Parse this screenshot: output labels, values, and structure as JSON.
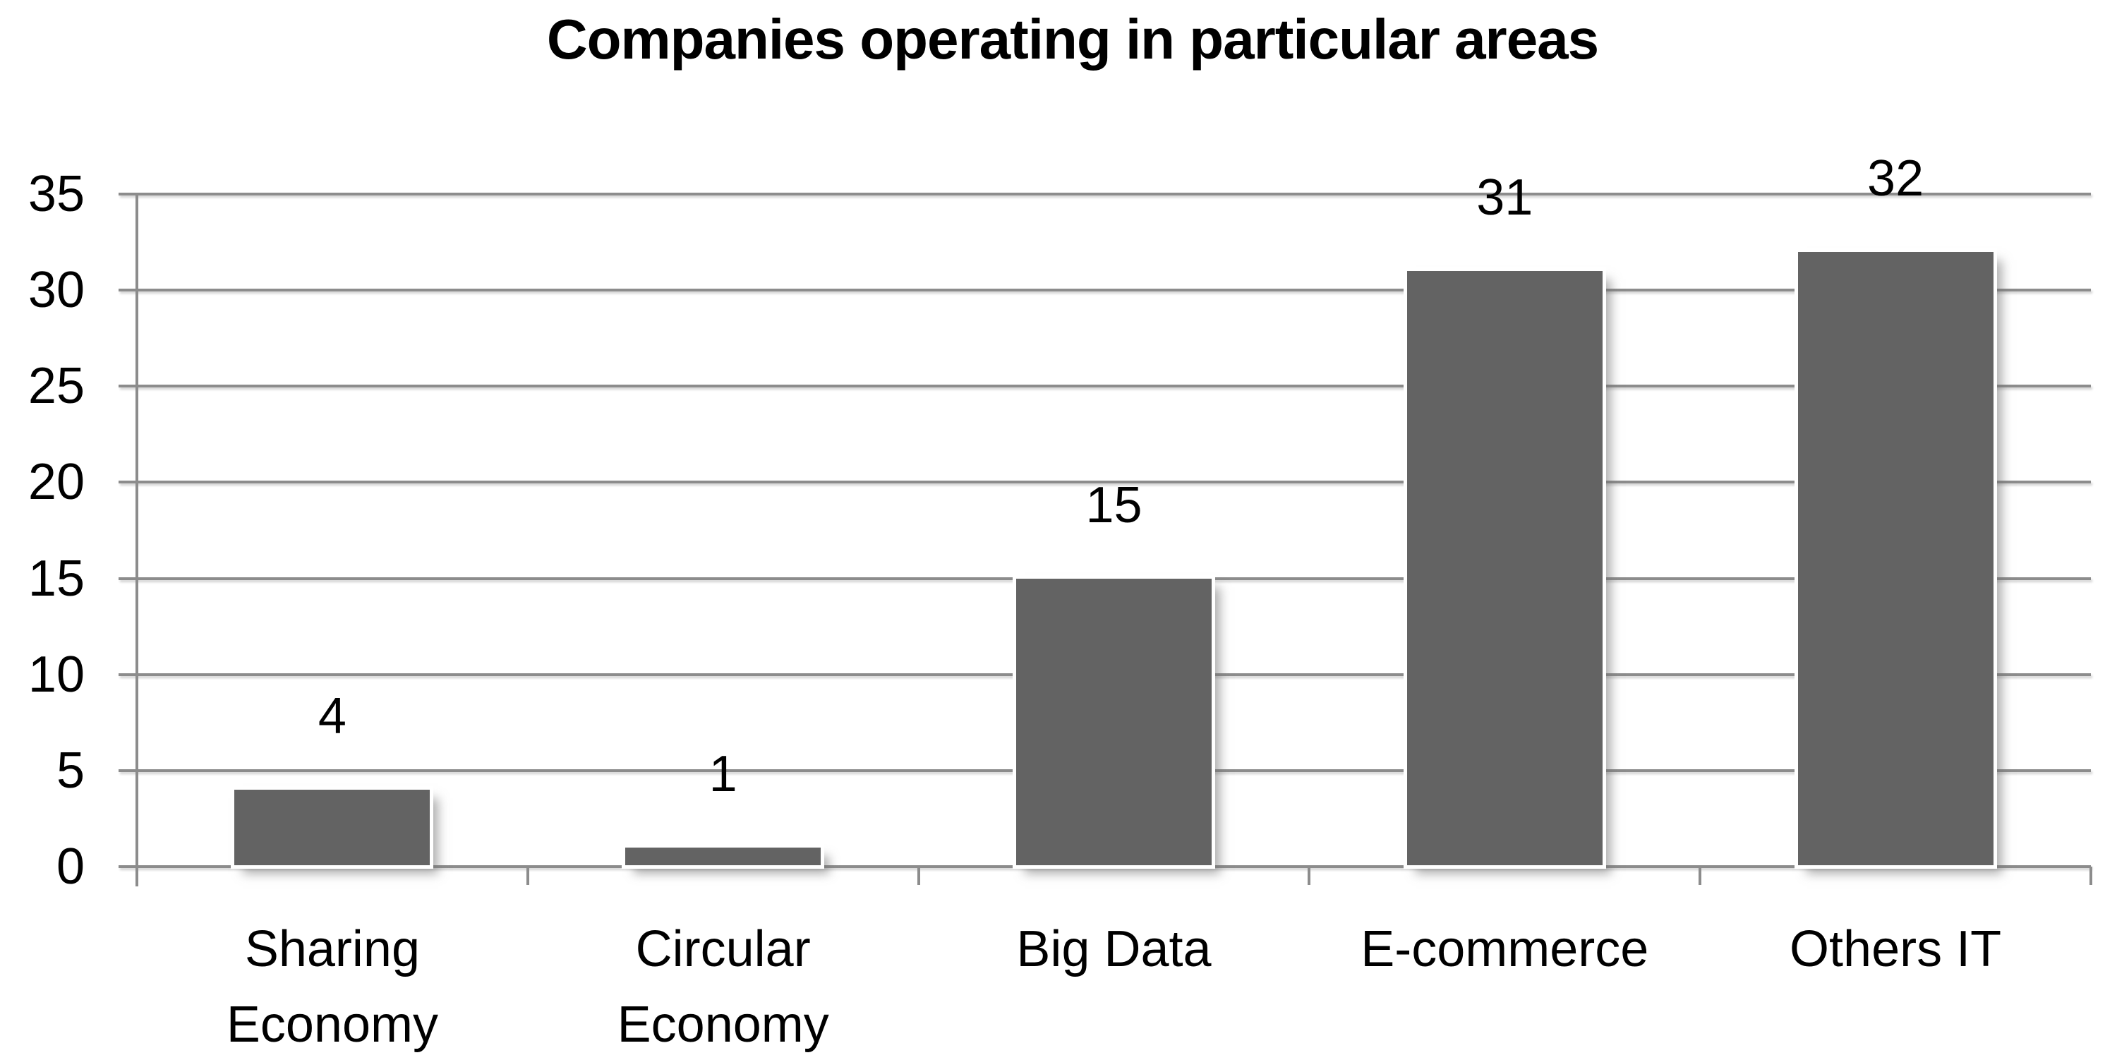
{
  "chart_data": {
    "type": "bar",
    "title": "Companies operating in particular areas",
    "categories": [
      "Sharing Economy",
      "Circular Economy",
      "Big Data",
      "E-commerce",
      "Others IT"
    ],
    "category_lines": [
      [
        "Sharing",
        "Economy"
      ],
      [
        "Circular",
        "Economy"
      ],
      [
        "Big Data"
      ],
      [
        "E-commerce"
      ],
      [
        "Others IT"
      ]
    ],
    "values": [
      4,
      1,
      15,
      31,
      32
    ],
    "data_labels": [
      "4",
      "1",
      "15",
      "31",
      "32"
    ],
    "xlabel": "",
    "ylabel": "",
    "ylim": [
      0,
      35
    ],
    "ytick_step": 5,
    "yticks": [
      35,
      30,
      25,
      20,
      15,
      10,
      5,
      0
    ],
    "grid": true,
    "legend": false,
    "colors": {
      "bar_fill": "#636363",
      "grid_line": "#8c8c8c",
      "text": "#000000",
      "background": "#ffffff"
    }
  }
}
